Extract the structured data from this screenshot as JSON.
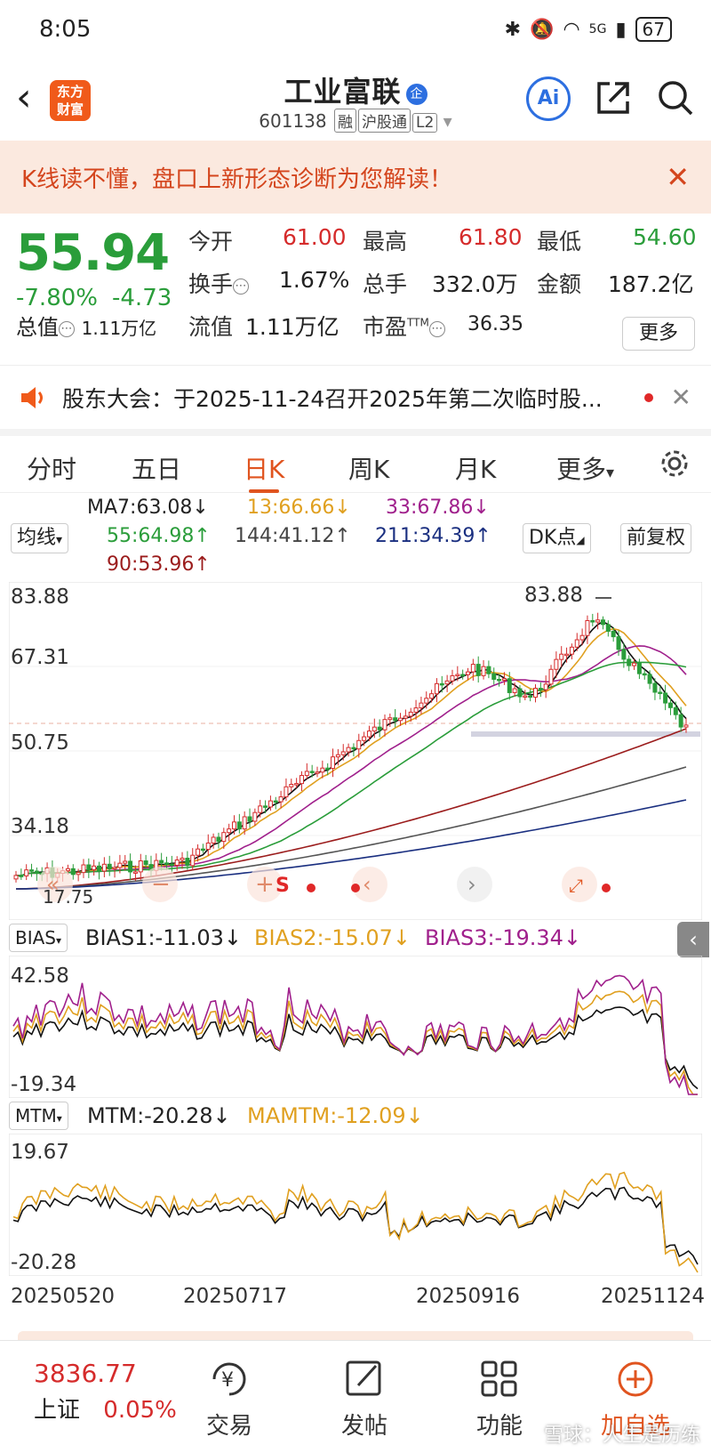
{
  "status": {
    "time": "8:05",
    "battery": "67",
    "signal": "5G"
  },
  "header": {
    "title": "工业富联",
    "badge": "企",
    "code": "601138",
    "tags": [
      "融",
      "沪股通",
      "L2"
    ],
    "logo": "东方\n财富",
    "ai": "Ai"
  },
  "banner": {
    "text": "K线读不懂，盘口上新形态诊断为您解读！"
  },
  "quote": {
    "price": "55.94",
    "change_pct": "-7.80%",
    "change": "-4.73",
    "open_label": "今开",
    "open": "61.00",
    "high_label": "最高",
    "high": "61.80",
    "low_label": "最低",
    "low": "54.60",
    "turnover_label": "换手",
    "turnover": "1.67%",
    "volume_label": "总手",
    "volume": "332.0万",
    "amount_label": "金额",
    "amount": "187.2亿",
    "mktcap_label": "总值",
    "mktcap": "1.11万亿",
    "float_label": "流值",
    "float": "1.11万亿",
    "pe_label": "市盈",
    "pe_sup": "TTM",
    "pe": "36.35",
    "more": "更多"
  },
  "notice": {
    "text": "股东大会：于2025-11-24召开2025年第二次临时股..."
  },
  "tabs": [
    "分时",
    "五日",
    "日K",
    "周K",
    "月K",
    "更多"
  ],
  "active_tab": 2,
  "ma": {
    "selector": "均线",
    "ma7": "MA7:63.08↓",
    "ma13": "13:66.66↓",
    "ma33": "33:67.86↓",
    "ma55": "55:64.98↑",
    "ma144": "144:41.12↑",
    "ma211": "211:34.39↑",
    "ma90": "90:53.96↑",
    "dk": "DK点",
    "adj": "前复权",
    "colors": {
      "ma7": "#111111",
      "ma13": "#e0a020",
      "ma33": "#a0208c",
      "ma55": "#2a9d3a",
      "ma90": "#9b1c1c",
      "ma144": "#555555",
      "ma211": "#1a2f80"
    }
  },
  "kline_axis": [
    "83.88",
    "67.31",
    "50.75",
    "34.18",
    "17.75"
  ],
  "kline_annot": {
    "high_mark": "83.88",
    "low_mark": "17.75"
  },
  "bias": {
    "selector": "BIAS",
    "b1": "BIAS1:-11.03↓",
    "b2": "BIAS2:-15.07↓",
    "b3": "BIAS3:-19.34↓",
    "axis_top": "42.58",
    "axis_bottom": "-19.34"
  },
  "mtm": {
    "selector": "MTM",
    "mtm": "MTM:-20.28↓",
    "mamtm": "MAMTM:-12.09↓",
    "axis_top": "19.67",
    "axis_bottom": "-20.28"
  },
  "dates": [
    "20250520",
    "20250717",
    "20250916",
    "20251124"
  ],
  "bottom": {
    "index_value": "3836.77",
    "index_name": "上证",
    "index_change": "0.05%",
    "trade": "交易",
    "post": "发帖",
    "func": "功能",
    "fav": "加自选",
    "watermark": "雪球：人生是历练"
  }
}
